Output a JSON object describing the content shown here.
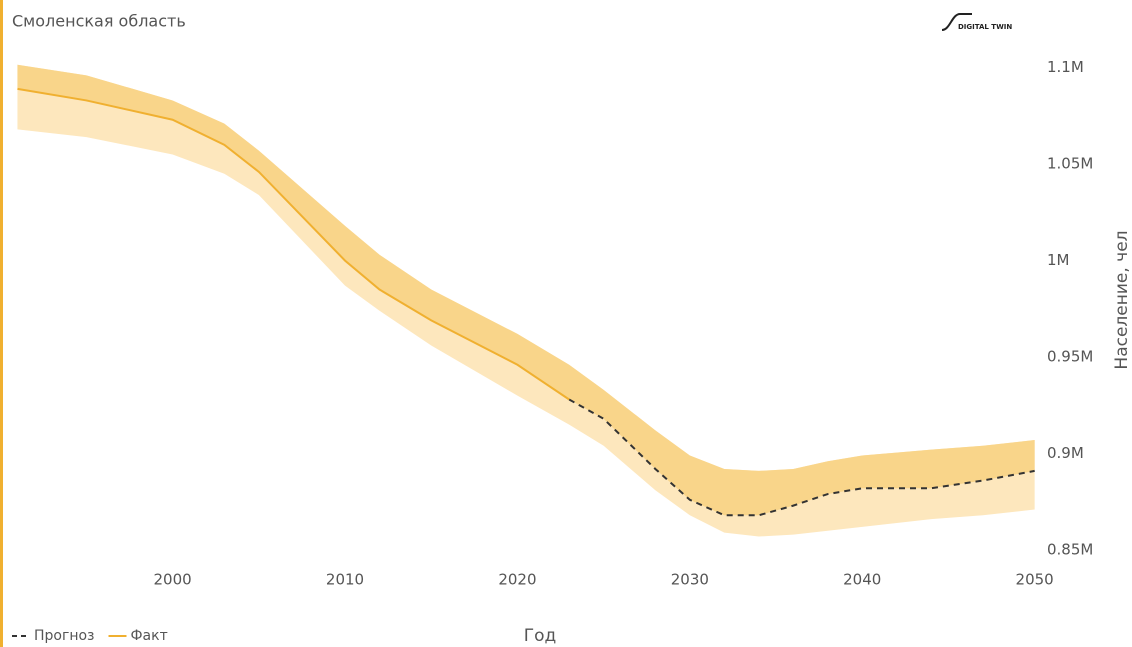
{
  "chart_data": {
    "type": "line",
    "title": "Смоленская область",
    "logo": "DIGITAL TWIN",
    "xlabel": "Год",
    "ylabel": "Население, чел",
    "x": [
      1991,
      1995,
      2000,
      2003,
      2005,
      2010,
      2012,
      2015,
      2020,
      2023,
      2025,
      2028,
      2030,
      2032,
      2034,
      2036,
      2038,
      2040,
      2044,
      2047,
      2050
    ],
    "series": [
      {
        "name": "Прогноз",
        "color": "#333333",
        "dashed": true,
        "values": [
          null,
          null,
          null,
          null,
          null,
          null,
          null,
          null,
          null,
          928000,
          918000,
          892000,
          876000,
          868000,
          868000,
          873000,
          879000,
          882000,
          882000,
          886000,
          891000
        ]
      },
      {
        "name": "Факт",
        "color": "#f0b030",
        "dashed": false,
        "values": [
          1089000,
          1083000,
          1073000,
          1060000,
          1046000,
          1000000,
          985000,
          969000,
          946000,
          928000,
          null,
          null,
          null,
          null,
          null,
          null,
          null,
          null,
          null,
          null,
          null
        ]
      }
    ],
    "band": {
      "color": "#fde7bd",
      "upper_color": "#f9d58a",
      "upper": [
        1101500,
        1096000,
        1083000,
        1071000,
        1057000,
        1018000,
        1003000,
        985000,
        962000,
        946000,
        933000,
        912000,
        899000,
        892000,
        891000,
        892000,
        896000,
        899000,
        902000,
        904000,
        907000
      ],
      "lower": [
        1068000,
        1064000,
        1055000,
        1045000,
        1034000,
        987000,
        974000,
        956000,
        930000,
        915000,
        904000,
        881000,
        868000,
        859000,
        857000,
        858000,
        860000,
        862000,
        866000,
        868000,
        871000
      ]
    },
    "xlim": [
      1990.8,
      2050.6
    ],
    "xticks": [
      2000,
      2010,
      2020,
      2030,
      2040,
      2050
    ],
    "ylim": [
      850000,
      1105000
    ],
    "yticks": [
      {
        "value": 850000,
        "label": "0.85M"
      },
      {
        "value": 900000,
        "label": "0.9M"
      },
      {
        "value": 950000,
        "label": "0.95M"
      },
      {
        "value": 1000000,
        "label": "1M"
      },
      {
        "value": 1050000,
        "label": "1.05M"
      },
      {
        "value": 1100000,
        "label": "1.1M"
      }
    ],
    "grid": false,
    "legend": "bottom-left"
  }
}
